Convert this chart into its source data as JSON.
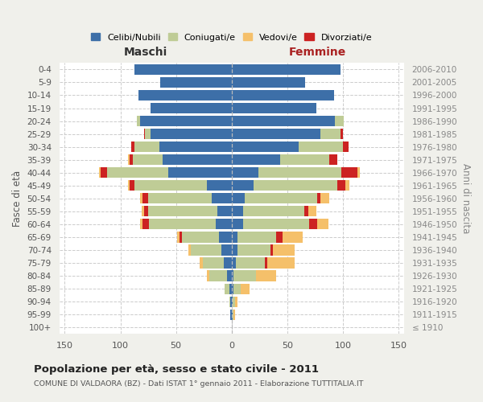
{
  "age_groups": [
    "100+",
    "95-99",
    "90-94",
    "85-89",
    "80-84",
    "75-79",
    "70-74",
    "65-69",
    "60-64",
    "55-59",
    "50-54",
    "45-49",
    "40-44",
    "35-39",
    "30-34",
    "25-29",
    "20-24",
    "15-19",
    "10-14",
    "5-9",
    "0-4"
  ],
  "birth_years": [
    "≤ 1910",
    "1911-1915",
    "1916-1920",
    "1921-1925",
    "1926-1930",
    "1931-1935",
    "1936-1940",
    "1941-1945",
    "1946-1950",
    "1951-1955",
    "1956-1960",
    "1961-1965",
    "1966-1970",
    "1971-1975",
    "1976-1980",
    "1981-1985",
    "1986-1990",
    "1991-1995",
    "1996-2000",
    "2001-2005",
    "2006-2010"
  ],
  "maschi": {
    "celibi": [
      0,
      1,
      1,
      2,
      4,
      7,
      9,
      11,
      14,
      13,
      18,
      22,
      57,
      62,
      65,
      73,
      82,
      73,
      84,
      64,
      87
    ],
    "coniugati": [
      0,
      0,
      1,
      4,
      16,
      19,
      28,
      34,
      60,
      62,
      57,
      65,
      55,
      27,
      22,
      5,
      3,
      0,
      0,
      0,
      0
    ],
    "vedovi": [
      0,
      0,
      0,
      0,
      2,
      3,
      2,
      2,
      2,
      2,
      2,
      1,
      1,
      1,
      0,
      0,
      0,
      0,
      0,
      0,
      0
    ],
    "divorziati": [
      0,
      0,
      0,
      0,
      0,
      0,
      0,
      2,
      6,
      4,
      5,
      5,
      6,
      3,
      3,
      1,
      0,
      0,
      0,
      0,
      0
    ]
  },
  "femmine": {
    "nubili": [
      0,
      1,
      1,
      2,
      2,
      4,
      5,
      5,
      10,
      10,
      12,
      20,
      24,
      44,
      60,
      80,
      93,
      76,
      92,
      66,
      98
    ],
    "coniugate": [
      0,
      1,
      2,
      6,
      20,
      26,
      30,
      35,
      60,
      55,
      65,
      75,
      75,
      44,
      40,
      18,
      8,
      0,
      0,
      0,
      0
    ],
    "vedove": [
      0,
      1,
      2,
      8,
      18,
      25,
      20,
      18,
      10,
      7,
      8,
      4,
      2,
      0,
      0,
      0,
      0,
      0,
      0,
      0,
      0
    ],
    "divorziate": [
      0,
      0,
      0,
      0,
      0,
      2,
      2,
      6,
      7,
      4,
      3,
      7,
      14,
      7,
      5,
      2,
      0,
      0,
      0,
      0,
      0
    ]
  },
  "colors": {
    "celibi": "#3d6fa8",
    "coniugati": "#bfcc96",
    "vedovi": "#f5c06a",
    "divorziati": "#cc2222"
  },
  "xlim": 155,
  "title": "Popolazione per età, sesso e stato civile - 2011",
  "subtitle": "COMUNE DI VALDAORA (BZ) - Dati ISTAT 1° gennaio 2011 - Elaborazione TUTTITALIA.IT",
  "label_maschi": "Maschi",
  "label_femmine": "Femmine",
  "ylabel_left": "Fasce di età",
  "ylabel_right": "Anni di nascita",
  "legend_labels": [
    "Celibi/Nubili",
    "Coniugati/e",
    "Vedovi/e",
    "Divorziati/e"
  ],
  "bg_color": "#f0f0eb",
  "plot_bg_color": "#ffffff"
}
